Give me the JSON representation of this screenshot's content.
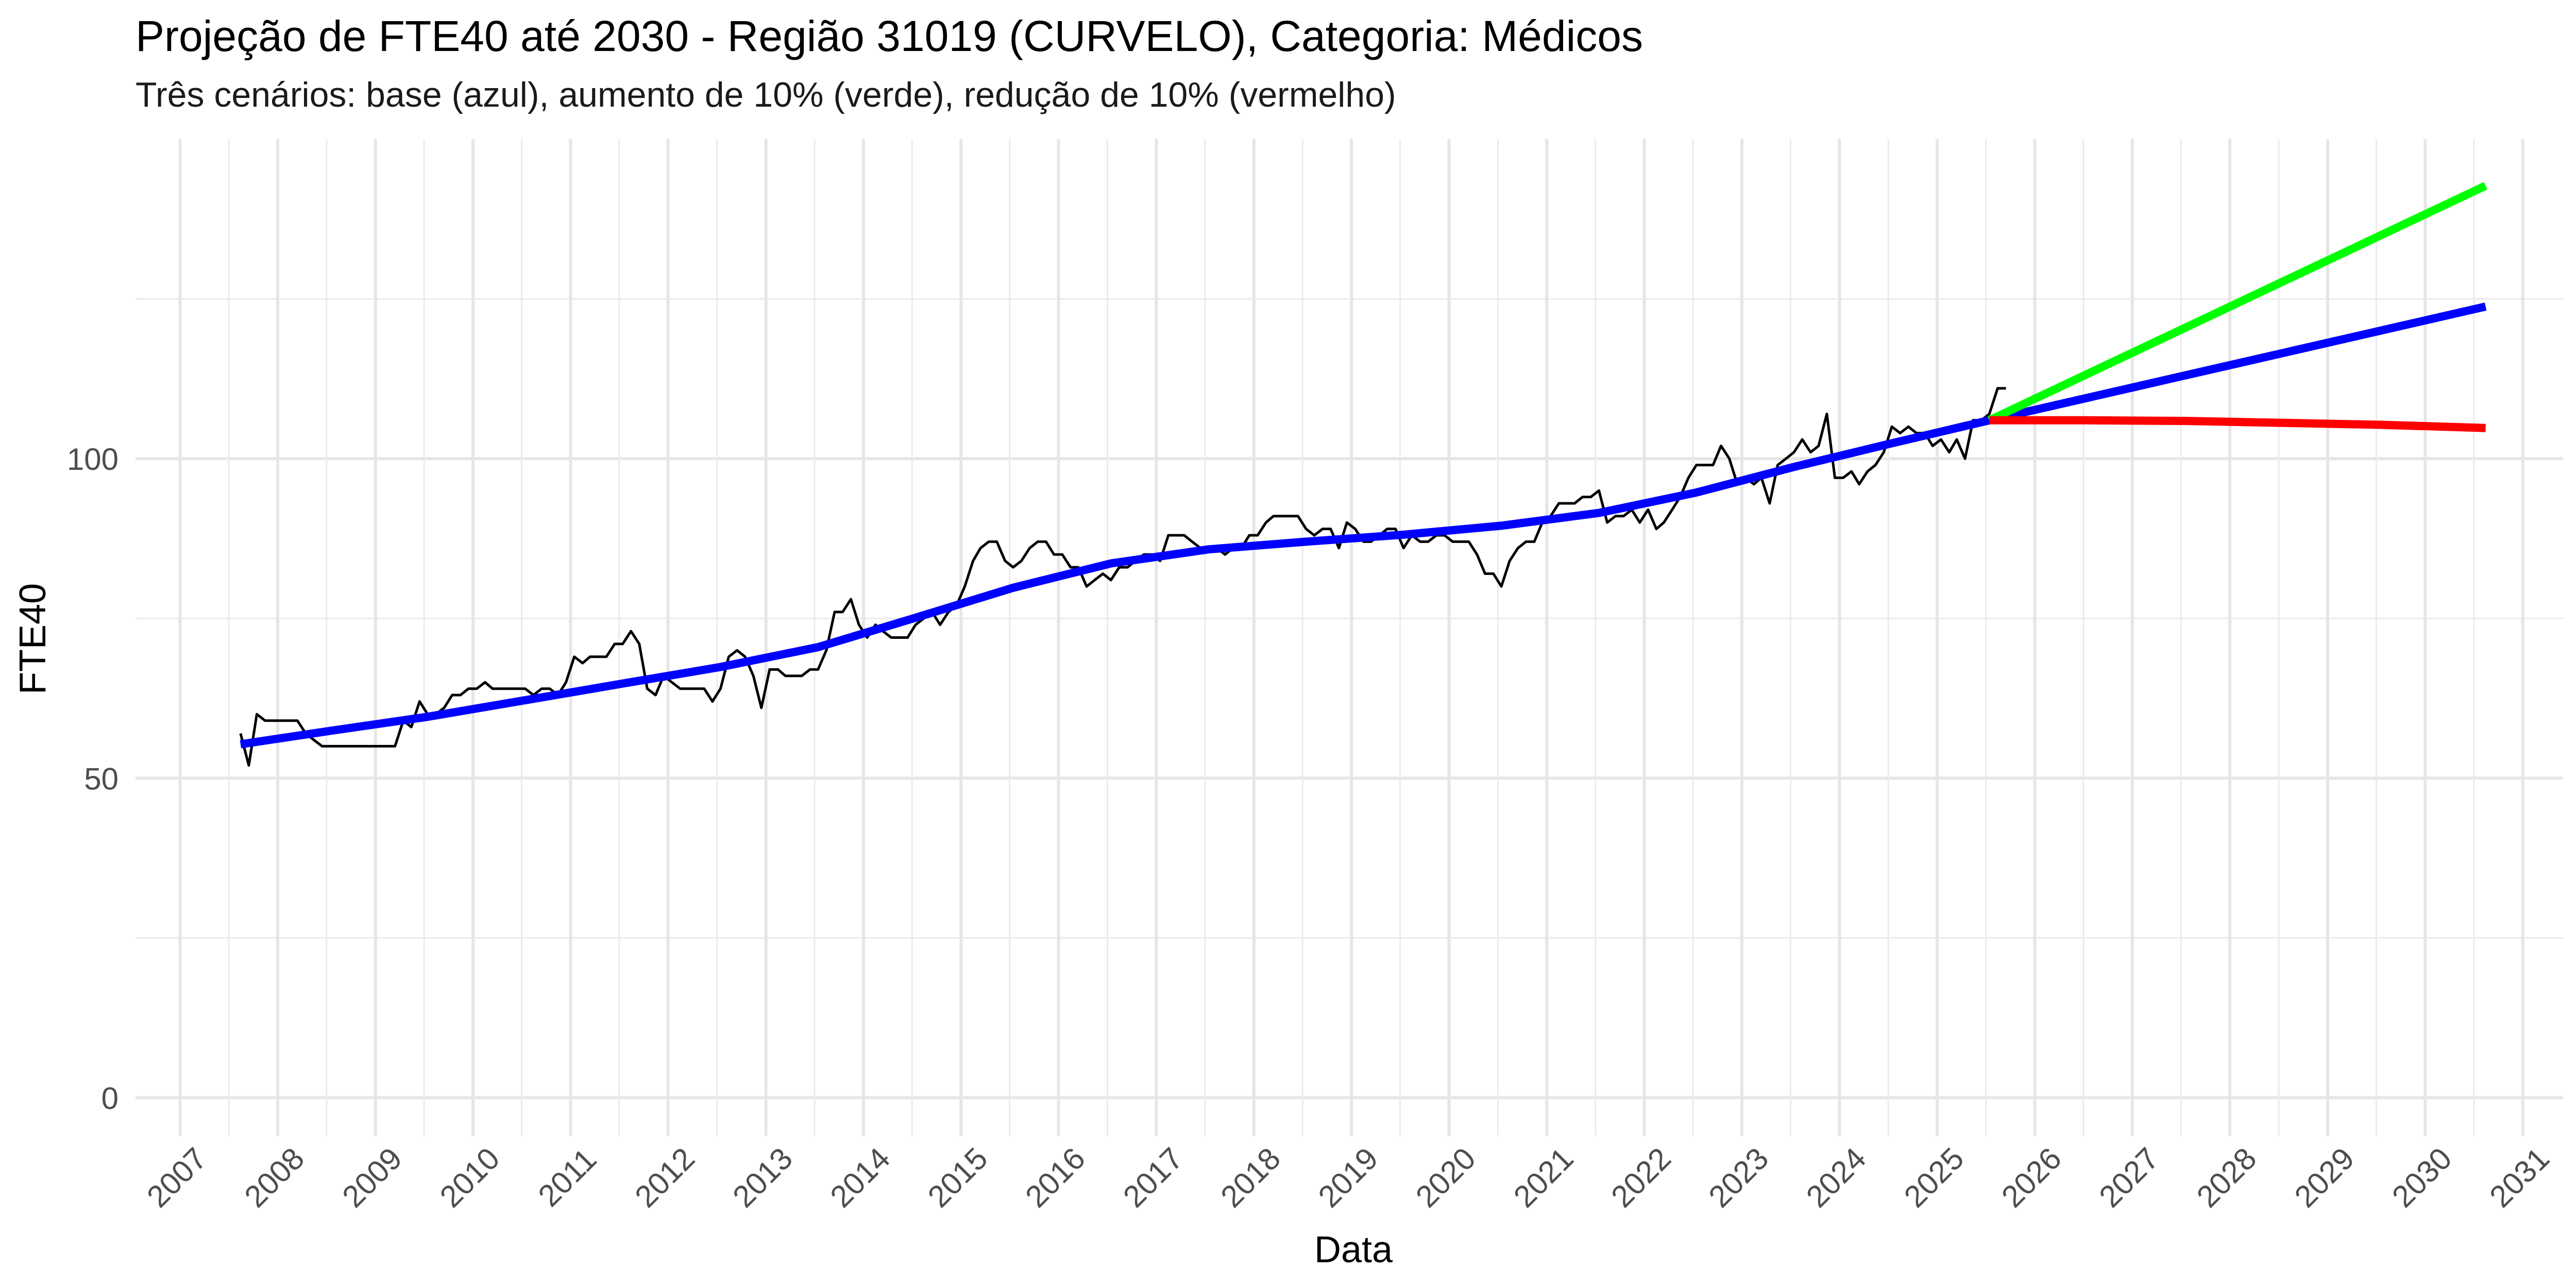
{
  "chart_data": {
    "type": "line",
    "title": "Projeção de FTE40 até 2030 - Região 31019 (CURVELO), Categoria: Médicos",
    "subtitle": "Três cenários: base (azul), aumento de 10% (verde), redução de 10% (vermelho)",
    "xlabel": "Data",
    "ylabel": "FTE40",
    "x_axis": {
      "type": "date",
      "range": [
        "2006-07-18",
        "2031-06-01"
      ],
      "tick_labels": [
        "2007",
        "2008",
        "2009",
        "2010",
        "2011",
        "2012",
        "2013",
        "2014",
        "2015",
        "2016",
        "2017",
        "2018",
        "2019",
        "2020",
        "2021",
        "2022",
        "2023",
        "2024",
        "2025",
        "2026",
        "2027",
        "2028",
        "2029",
        "2030",
        "2031"
      ]
    },
    "y_axis": {
      "range": [
        -6,
        150
      ],
      "tick_values": [
        0,
        50,
        100
      ],
      "tick_labels": [
        "0",
        "50",
        "100"
      ],
      "minor_gridlines": [
        25,
        75,
        125
      ]
    },
    "grid": true,
    "legend": "none",
    "series": [
      {
        "color": "#000000",
        "line_width": "thin",
        "points": [
          [
            "2007-08",
            57
          ],
          [
            "2007-09",
            52
          ],
          [
            "2007-10",
            60
          ],
          [
            "2007-11",
            59
          ],
          [
            "2007-12",
            59
          ],
          [
            "2008-01",
            59
          ],
          [
            "2008-02",
            59
          ],
          [
            "2008-03",
            59
          ],
          [
            "2008-04",
            57
          ],
          [
            "2008-05",
            56
          ],
          [
            "2008-06",
            55
          ],
          [
            "2008-07",
            55
          ],
          [
            "2008-08",
            55
          ],
          [
            "2008-09",
            55
          ],
          [
            "2008-10",
            55
          ],
          [
            "2008-11",
            55
          ],
          [
            "2008-12",
            55
          ],
          [
            "2009-01",
            55
          ],
          [
            "2009-02",
            55
          ],
          [
            "2009-03",
            55
          ],
          [
            "2009-04",
            59
          ],
          [
            "2009-05",
            58
          ],
          [
            "2009-06",
            62
          ],
          [
            "2009-07",
            60
          ],
          [
            "2009-08",
            60
          ],
          [
            "2009-09",
            61
          ],
          [
            "2009-10",
            63
          ],
          [
            "2009-11",
            63
          ],
          [
            "2009-12",
            64
          ],
          [
            "2010-01",
            64
          ],
          [
            "2010-02",
            65
          ],
          [
            "2010-03",
            64
          ],
          [
            "2010-04",
            64
          ],
          [
            "2010-05",
            64
          ],
          [
            "2010-06",
            64
          ],
          [
            "2010-07",
            64
          ],
          [
            "2010-08",
            63
          ],
          [
            "2010-09",
            64
          ],
          [
            "2010-10",
            64
          ],
          [
            "2010-11",
            63
          ],
          [
            "2010-12",
            65
          ],
          [
            "2011-01",
            69
          ],
          [
            "2011-02",
            68
          ],
          [
            "2011-03",
            69
          ],
          [
            "2011-04",
            69
          ],
          [
            "2011-05",
            69
          ],
          [
            "2011-06",
            71
          ],
          [
            "2011-07",
            71
          ],
          [
            "2011-08",
            73
          ],
          [
            "2011-09",
            71
          ],
          [
            "2011-10",
            64
          ],
          [
            "2011-11",
            63
          ],
          [
            "2011-12",
            66
          ],
          [
            "2012-01",
            65
          ],
          [
            "2012-02",
            64
          ],
          [
            "2012-03",
            64
          ],
          [
            "2012-04",
            64
          ],
          [
            "2012-05",
            64
          ],
          [
            "2012-06",
            62
          ],
          [
            "2012-07",
            64
          ],
          [
            "2012-08",
            69
          ],
          [
            "2012-09",
            70
          ],
          [
            "2012-10",
            69
          ],
          [
            "2012-11",
            66
          ],
          [
            "2012-12",
            61
          ],
          [
            "2013-01",
            67
          ],
          [
            "2013-02",
            67
          ],
          [
            "2013-03",
            66
          ],
          [
            "2013-04",
            66
          ],
          [
            "2013-05",
            66
          ],
          [
            "2013-06",
            67
          ],
          [
            "2013-07",
            67
          ],
          [
            "2013-08",
            70
          ],
          [
            "2013-09",
            76
          ],
          [
            "2013-10",
            76
          ],
          [
            "2013-11",
            78
          ],
          [
            "2013-12",
            74
          ],
          [
            "2014-01",
            72
          ],
          [
            "2014-02",
            74
          ],
          [
            "2014-03",
            73
          ],
          [
            "2014-04",
            72
          ],
          [
            "2014-05",
            72
          ],
          [
            "2014-06",
            72
          ],
          [
            "2014-07",
            74
          ],
          [
            "2014-08",
            75
          ],
          [
            "2014-09",
            76
          ],
          [
            "2014-10",
            74
          ],
          [
            "2014-11",
            76
          ],
          [
            "2014-12",
            77
          ],
          [
            "2015-01",
            80
          ],
          [
            "2015-02",
            84
          ],
          [
            "2015-03",
            86
          ],
          [
            "2015-04",
            87
          ],
          [
            "2015-05",
            87
          ],
          [
            "2015-06",
            84
          ],
          [
            "2015-07",
            83
          ],
          [
            "2015-08",
            84
          ],
          [
            "2015-09",
            86
          ],
          [
            "2015-10",
            87
          ],
          [
            "2015-11",
            87
          ],
          [
            "2015-12",
            85
          ],
          [
            "2016-01",
            85
          ],
          [
            "2016-02",
            83
          ],
          [
            "2016-03",
            83
          ],
          [
            "2016-04",
            80
          ],
          [
            "2016-05",
            81
          ],
          [
            "2016-06",
            82
          ],
          [
            "2016-07",
            81
          ],
          [
            "2016-08",
            83
          ],
          [
            "2016-09",
            83
          ],
          [
            "2016-10",
            84
          ],
          [
            "2016-11",
            85
          ],
          [
            "2016-12",
            85
          ],
          [
            "2017-01",
            84
          ],
          [
            "2017-02",
            88
          ],
          [
            "2017-03",
            88
          ],
          [
            "2017-04",
            88
          ],
          [
            "2017-05",
            87
          ],
          [
            "2017-06",
            86
          ],
          [
            "2017-07",
            86
          ],
          [
            "2017-08",
            86
          ],
          [
            "2017-09",
            85
          ],
          [
            "2017-10",
            86
          ],
          [
            "2017-11",
            86
          ],
          [
            "2017-12",
            88
          ],
          [
            "2018-01",
            88
          ],
          [
            "2018-02",
            90
          ],
          [
            "2018-03",
            91
          ],
          [
            "2018-04",
            91
          ],
          [
            "2018-05",
            91
          ],
          [
            "2018-06",
            91
          ],
          [
            "2018-07",
            89
          ],
          [
            "2018-08",
            88
          ],
          [
            "2018-09",
            89
          ],
          [
            "2018-10",
            89
          ],
          [
            "2018-11",
            86
          ],
          [
            "2018-12",
            90
          ],
          [
            "2019-01",
            89
          ],
          [
            "2019-02",
            87
          ],
          [
            "2019-03",
            87
          ],
          [
            "2019-04",
            88
          ],
          [
            "2019-05",
            89
          ],
          [
            "2019-06",
            89
          ],
          [
            "2019-07",
            86
          ],
          [
            "2019-08",
            88
          ],
          [
            "2019-09",
            87
          ],
          [
            "2019-10",
            87
          ],
          [
            "2019-11",
            88
          ],
          [
            "2019-12",
            88
          ],
          [
            "2020-01",
            87
          ],
          [
            "2020-02",
            87
          ],
          [
            "2020-03",
            87
          ],
          [
            "2020-04",
            85
          ],
          [
            "2020-05",
            82
          ],
          [
            "2020-06",
            82
          ],
          [
            "2020-07",
            80
          ],
          [
            "2020-08",
            84
          ],
          [
            "2020-09",
            86
          ],
          [
            "2020-10",
            87
          ],
          [
            "2020-11",
            87
          ],
          [
            "2020-12",
            90
          ],
          [
            "2021-01",
            91
          ],
          [
            "2021-02",
            93
          ],
          [
            "2021-03",
            93
          ],
          [
            "2021-04",
            93
          ],
          [
            "2021-05",
            94
          ],
          [
            "2021-06",
            94
          ],
          [
            "2021-07",
            95
          ],
          [
            "2021-08",
            90
          ],
          [
            "2021-09",
            91
          ],
          [
            "2021-10",
            91
          ],
          [
            "2021-11",
            92
          ],
          [
            "2021-12",
            90
          ],
          [
            "2022-01",
            92
          ],
          [
            "2022-02",
            89
          ],
          [
            "2022-03",
            90
          ],
          [
            "2022-04",
            92
          ],
          [
            "2022-05",
            94
          ],
          [
            "2022-06",
            97
          ],
          [
            "2022-07",
            99
          ],
          [
            "2022-08",
            99
          ],
          [
            "2022-09",
            99
          ],
          [
            "2022-10",
            102
          ],
          [
            "2022-11",
            100
          ],
          [
            "2022-12",
            96
          ],
          [
            "2023-01",
            97
          ],
          [
            "2023-02",
            96
          ],
          [
            "2023-03",
            97
          ],
          [
            "2023-04",
            93
          ],
          [
            "2023-05",
            99
          ],
          [
            "2023-06",
            100
          ],
          [
            "2023-07",
            101
          ],
          [
            "2023-08",
            103
          ],
          [
            "2023-09",
            101
          ],
          [
            "2023-10",
            102
          ],
          [
            "2023-11",
            107
          ],
          [
            "2023-12",
            97
          ],
          [
            "2024-01",
            97
          ],
          [
            "2024-02",
            98
          ],
          [
            "2024-03",
            96
          ],
          [
            "2024-04",
            98
          ],
          [
            "2024-05",
            99
          ],
          [
            "2024-06",
            101
          ],
          [
            "2024-07",
            105
          ],
          [
            "2024-08",
            104
          ],
          [
            "2024-09",
            105
          ],
          [
            "2024-10",
            104
          ],
          [
            "2024-11",
            104
          ],
          [
            "2024-12",
            102
          ],
          [
            "2025-01",
            103
          ],
          [
            "2025-02",
            101
          ],
          [
            "2025-03",
            103
          ],
          [
            "2025-04",
            100
          ],
          [
            "2025-05",
            106
          ],
          [
            "2025-06",
            106
          ],
          [
            "2025-07",
            107
          ],
          [
            "2025-08",
            111
          ],
          [
            "2025-09",
            111
          ]
        ]
      },
      {
        "color": "#0000ff",
        "line_width": "thick",
        "points": [
          [
            "2007-08",
            55.3
          ],
          [
            "2008-07",
            57.4
          ],
          [
            "2009-07",
            59.6
          ],
          [
            "2010-07",
            62.2
          ],
          [
            "2011-07",
            64.8
          ],
          [
            "2012-07",
            67.4
          ],
          [
            "2013-07",
            70.5
          ],
          [
            "2014-07",
            75.1
          ],
          [
            "2015-07",
            79.8
          ],
          [
            "2016-07",
            83.6
          ],
          [
            "2017-07",
            85.8
          ],
          [
            "2018-07",
            87.0
          ],
          [
            "2019-07",
            88.1
          ],
          [
            "2020-07",
            89.5
          ],
          [
            "2021-07",
            91.5
          ],
          [
            "2022-07",
            94.7
          ],
          [
            "2023-07",
            98.7
          ],
          [
            "2024-07",
            102.4
          ],
          [
            "2025-07",
            106.0
          ],
          [
            "2030-08",
            123.8
          ]
        ]
      },
      {
        "color": "#00ff00",
        "line_width": "thick",
        "points": [
          [
            "2025-07",
            106.0
          ],
          [
            "2030-08",
            142.7
          ]
        ]
      },
      {
        "color": "#ff0000",
        "line_width": "thick",
        "points": [
          [
            "2025-07",
            106.0
          ],
          [
            "2026-07",
            106.0
          ],
          [
            "2027-07",
            105.9
          ],
          [
            "2028-07",
            105.6
          ],
          [
            "2029-07",
            105.3
          ],
          [
            "2030-08",
            104.8
          ]
        ]
      }
    ]
  }
}
